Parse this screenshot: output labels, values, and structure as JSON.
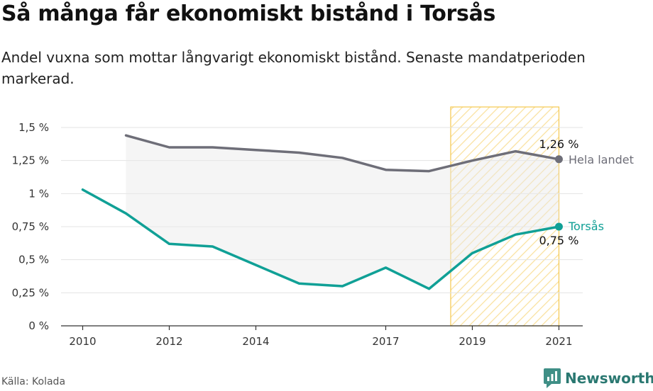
{
  "header": {
    "title": "Så många får ekonomiskt bistånd i Torsås",
    "subtitle": "Andel vuxna som mottar långvarigt ekonomiskt bistånd. Senaste mandatperioden markerad."
  },
  "footer": {
    "source": "Källa: Kolada",
    "brand": "Newsworthy",
    "brand_icon": "chart-bubble-icon"
  },
  "colors": {
    "torsas": "#10a096",
    "hela_landet": "#6e6e78",
    "highlight": "#f5c84e",
    "fill": "#e9e9e9"
  },
  "chart_data": {
    "type": "line",
    "x": [
      2010,
      2011,
      2012,
      2013,
      2014,
      2015,
      2016,
      2017,
      2018,
      2019,
      2020,
      2021
    ],
    "series": [
      {
        "name": "Hela landet",
        "values": [
          null,
          1.44,
          1.35,
          1.35,
          1.33,
          1.31,
          1.27,
          1.18,
          1.17,
          1.25,
          1.32,
          1.26
        ],
        "end_label": "1,26 %"
      },
      {
        "name": "Torsås",
        "values": [
          1.03,
          0.85,
          0.62,
          0.6,
          0.46,
          0.32,
          0.3,
          0.44,
          0.28,
          0.55,
          0.69,
          0.75
        ],
        "end_label": "0,75 %"
      }
    ],
    "x_ticks": [
      2010,
      2012,
      2014,
      2017,
      2019,
      2021
    ],
    "x_tick_labels": [
      "2010",
      "2012",
      "2014",
      "2017",
      "2019",
      "2021"
    ],
    "y_ticks": [
      0,
      0.25,
      0.5,
      0.75,
      1,
      1.25,
      1.5
    ],
    "y_tick_labels": [
      "0 %",
      "0,25 %",
      "0,5 %",
      "0,75 %",
      "1 %",
      "1,25 %",
      "1,5 %"
    ],
    "xlim": [
      2009.5,
      2021.55
    ],
    "ylim": [
      0,
      1.5
    ],
    "highlight_range": [
      2018.5,
      2021
    ],
    "grid": "horizontal",
    "legend": "direct labels at line ends"
  }
}
